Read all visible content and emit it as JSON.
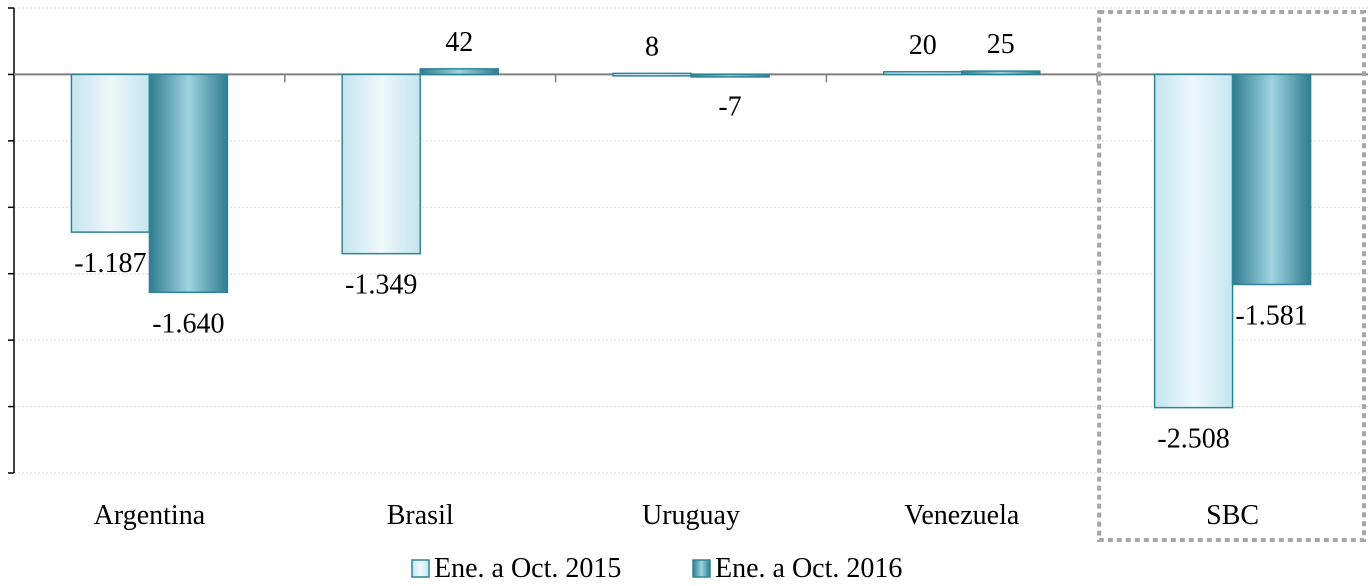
{
  "chart_data": {
    "type": "bar",
    "categories": [
      "Argentina",
      "Brasil",
      "Uruguay",
      "Venezuela",
      "SBC"
    ],
    "series": [
      {
        "name": "Ene. a Oct. 2015",
        "values": [
          -1187,
          -1349,
          8,
          20,
          -2508
        ],
        "labels": [
          "-1.187",
          "-1.349",
          "8",
          "20",
          "-2.508"
        ]
      },
      {
        "name": "Ene. a Oct. 2016",
        "values": [
          -1640,
          42,
          -7,
          25,
          -1581
        ],
        "labels": [
          "-1.640",
          "42",
          "-7",
          "25",
          "-1.581"
        ]
      }
    ],
    "ylim": [
      -3000,
      500
    ],
    "grid": true,
    "legend_position": "bottom",
    "highlighted_category": "SBC",
    "colors": {
      "series_2015_fill": "#d5eef5",
      "series_2016_fill": "#5ba7b8",
      "bar_border": "#2f8496",
      "axis": "#7f7f7f",
      "grid": "#d9d9d9",
      "highlight_box": "#a6a6a6"
    }
  }
}
